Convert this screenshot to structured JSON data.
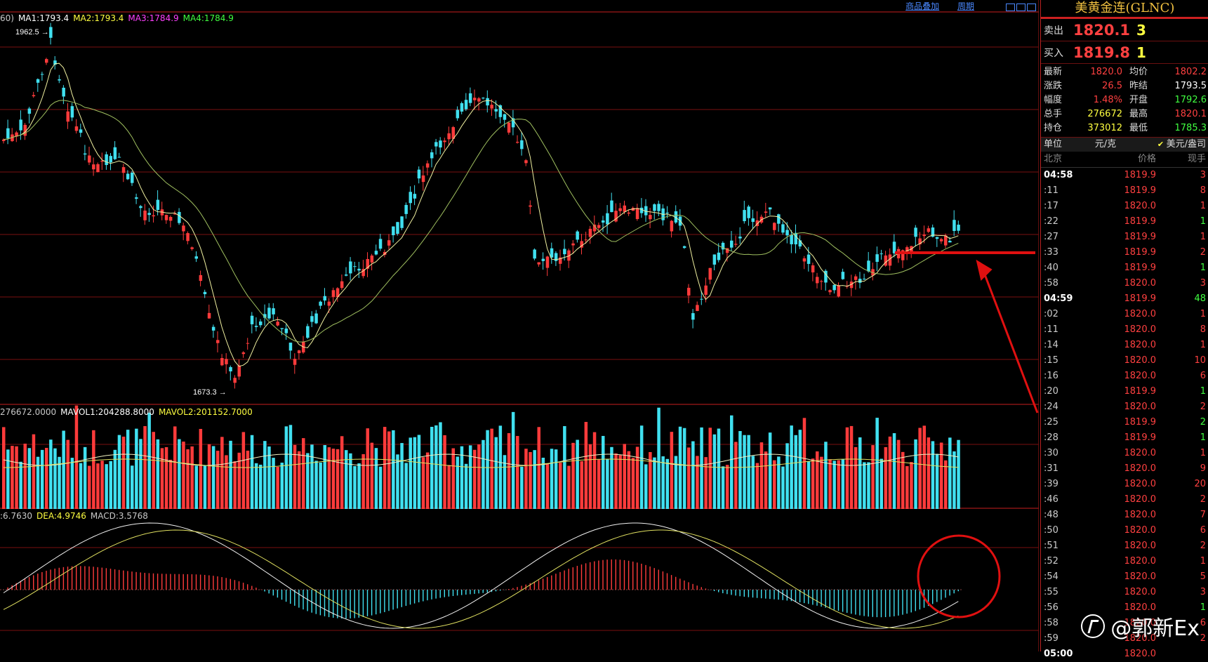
{
  "toolbar": {
    "overlay_label": "商品叠加",
    "period_label": "周期"
  },
  "main_legend": [
    {
      "text": "60)",
      "color": "#c8c8c8"
    },
    {
      "text": "MA1:1793.4",
      "color": "#ffffff"
    },
    {
      "text": "MA2:1793.4",
      "color": "#ffff40"
    },
    {
      "text": "MA3:1784.9",
      "color": "#ff40ff"
    },
    {
      "text": "MA4:1784.9",
      "color": "#40ff40"
    }
  ],
  "volume_legend": [
    {
      "text": "276672.0000",
      "color": "#c8c8c8"
    },
    {
      "text": "MAVOL1:204288.8000",
      "color": "#ffffff"
    },
    {
      "text": "MAVOL2:201152.7000",
      "color": "#ffff40"
    }
  ],
  "macd_legend": [
    {
      "text": ":6.7630",
      "color": "#c8c8c8"
    },
    {
      "text": "DEA:4.9746",
      "color": "#ffff40"
    },
    {
      "text": "MACD:3.5768",
      "color": "#c8c8c8"
    }
  ],
  "annotations": {
    "high_label": "1962.5",
    "low_label": "1673.3"
  },
  "quote": {
    "title": "美黄金连(GLNC)",
    "sell_label": "卖出",
    "sell_price": "1820.1",
    "sell_qty": "3",
    "buy_label": "买入",
    "buy_price": "1819.8",
    "buy_qty": "1",
    "stats": [
      {
        "k": "最新",
        "v": "1820.0",
        "vc": "#ff4040",
        "k2": "均价",
        "v2": "1802.2",
        "v2c": "#ff4040"
      },
      {
        "k": "涨跌",
        "v": "26.5",
        "vc": "#ff4040",
        "k2": "昨结",
        "v2": "1793.5",
        "v2c": "#ffffff"
      },
      {
        "k": "幅度",
        "v": "1.48%",
        "vc": "#ff4040",
        "k2": "开盘",
        "v2": "1792.6",
        "v2c": "#40ff40"
      },
      {
        "k": "总手",
        "v": "276672",
        "vc": "#ffff40",
        "k2": "最高",
        "v2": "1820.1",
        "v2c": "#ff4040"
      },
      {
        "k": "持仓",
        "v": "373012",
        "vc": "#ffff40",
        "k2": "最低",
        "v2": "1785.3",
        "v2c": "#40ff40"
      }
    ],
    "unit_label": "单位",
    "unit_value": "元/克",
    "unit_alt": "美元/盎司",
    "tick_header": {
      "time": "北京",
      "price": "价格",
      "qty": "现手"
    },
    "ticks": [
      {
        "t": "04:58",
        "p": "1819.9",
        "q": "3",
        "qc": "#ff4040",
        "bold": true
      },
      {
        "t": ":11",
        "p": "1819.9",
        "q": "8",
        "qc": "#ff4040",
        "bold": false
      },
      {
        "t": ":17",
        "p": "1820.0",
        "q": "1",
        "qc": "#ff4040",
        "bold": false
      },
      {
        "t": ":22",
        "p": "1819.9",
        "q": "1",
        "qc": "#40ff40",
        "bold": false
      },
      {
        "t": ":27",
        "p": "1819.9",
        "q": "1",
        "qc": "#ff4040",
        "bold": false
      },
      {
        "t": ":33",
        "p": "1819.9",
        "q": "2",
        "qc": "#ff4040",
        "bold": false
      },
      {
        "t": ":40",
        "p": "1819.9",
        "q": "1",
        "qc": "#40ff40",
        "bold": false
      },
      {
        "t": ":58",
        "p": "1820.0",
        "q": "3",
        "qc": "#ff4040",
        "bold": false
      },
      {
        "t": "04:59",
        "p": "1819.9",
        "q": "48",
        "qc": "#40ff40",
        "bold": true
      },
      {
        "t": ":02",
        "p": "1820.0",
        "q": "1",
        "qc": "#ff4040",
        "bold": false
      },
      {
        "t": ":11",
        "p": "1820.0",
        "q": "8",
        "qc": "#ff4040",
        "bold": false
      },
      {
        "t": ":14",
        "p": "1820.0",
        "q": "1",
        "qc": "#ff4040",
        "bold": false
      },
      {
        "t": ":15",
        "p": "1820.0",
        "q": "10",
        "qc": "#ff4040",
        "bold": false
      },
      {
        "t": ":16",
        "p": "1820.0",
        "q": "6",
        "qc": "#ff4040",
        "bold": false
      },
      {
        "t": ":20",
        "p": "1819.9",
        "q": "1",
        "qc": "#40ff40",
        "bold": false
      },
      {
        "t": ":24",
        "p": "1820.0",
        "q": "2",
        "qc": "#ff4040",
        "bold": false
      },
      {
        "t": ":25",
        "p": "1819.9",
        "q": "2",
        "qc": "#40ff40",
        "bold": false
      },
      {
        "t": ":28",
        "p": "1819.9",
        "q": "1",
        "qc": "#40ff40",
        "bold": false
      },
      {
        "t": ":30",
        "p": "1820.0",
        "q": "1",
        "qc": "#ff4040",
        "bold": false
      },
      {
        "t": ":31",
        "p": "1820.0",
        "q": "9",
        "qc": "#ff4040",
        "bold": false
      },
      {
        "t": ":39",
        "p": "1820.0",
        "q": "20",
        "qc": "#ff4040",
        "bold": false
      },
      {
        "t": ":46",
        "p": "1820.0",
        "q": "2",
        "qc": "#ff4040",
        "bold": false
      },
      {
        "t": ":48",
        "p": "1820.0",
        "q": "7",
        "qc": "#ff4040",
        "bold": false
      },
      {
        "t": ":50",
        "p": "1820.0",
        "q": "6",
        "qc": "#ff4040",
        "bold": false
      },
      {
        "t": ":51",
        "p": "1820.0",
        "q": "2",
        "qc": "#ff4040",
        "bold": false
      },
      {
        "t": ":52",
        "p": "1820.0",
        "q": "1",
        "qc": "#ff4040",
        "bold": false
      },
      {
        "t": ":54",
        "p": "1820.0",
        "q": "5",
        "qc": "#ff4040",
        "bold": false
      },
      {
        "t": ":55",
        "p": "1820.0",
        "q": "3",
        "qc": "#ff4040",
        "bold": false
      },
      {
        "t": ":56",
        "p": "1820.0",
        "q": "1",
        "qc": "#40ff40",
        "bold": false
      },
      {
        "t": ":58",
        "p": "1820.0",
        "q": "6",
        "qc": "#ff4040",
        "bold": false
      },
      {
        "t": ":59",
        "p": "1820.0",
        "q": "2",
        "qc": "#ff4040",
        "bold": false
      },
      {
        "t": "05:00",
        "p": "1820.0",
        "q": "",
        "qc": "#ff4040",
        "bold": true
      }
    ]
  },
  "watermark": "@郭新Ex",
  "colors": {
    "up": "#ff3b3b",
    "down": "#40e0f0",
    "grid": "#7a1010",
    "annotation": "#e01010"
  }
}
